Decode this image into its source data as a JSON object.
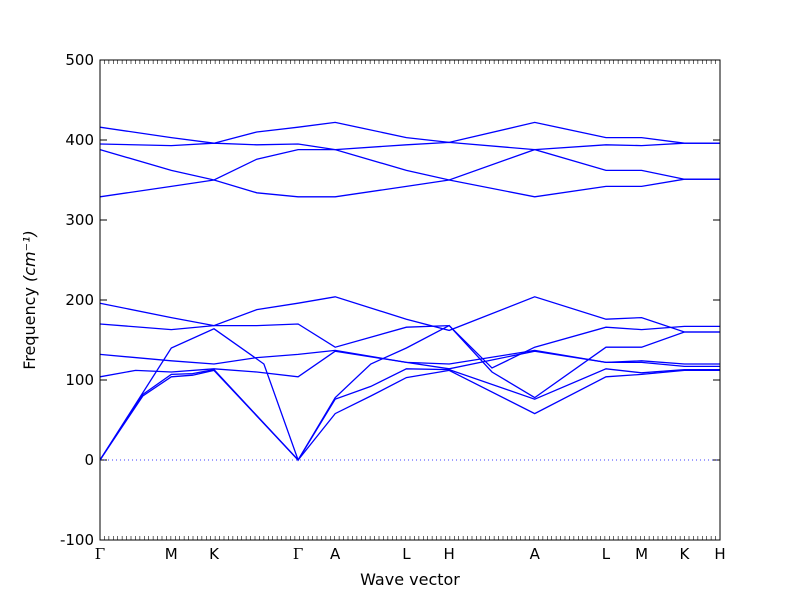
{
  "chart_data": {
    "type": "line",
    "title": "",
    "xlabel": "Wave vector",
    "ylabel": "Frequency",
    "ylabel_unit": "(cm⁻¹)",
    "ylim": [
      -100,
      500
    ],
    "yticks": [
      -100,
      0,
      100,
      200,
      300,
      400,
      500
    ],
    "x_segment_boundaries": [
      0,
      0.9,
      1.5,
      4.2,
      4.7,
      5.7,
      6.3,
      7.5,
      8.5,
      9.0,
      9.6,
      10.0
    ],
    "high_symmetry_points": [
      {
        "label": "Γ",
        "x": 0
      },
      {
        "label": "M",
        "x": 1.0
      },
      {
        "label": "K",
        "x": 1.6
      },
      {
        "label": "Γ",
        "x": 2.78
      },
      {
        "label": "A",
        "x": 3.3
      },
      {
        "label": "L",
        "x": 4.3
      },
      {
        "label": "H",
        "x": 4.9
      },
      {
        "label": "A",
        "x": 6.1
      },
      {
        "label": "L",
        "x": 7.1
      },
      {
        "label": "M",
        "x": 7.6
      },
      {
        "label": "K",
        "x": 8.2
      },
      {
        "label": "H",
        "x": 8.7
      }
    ],
    "zero_line": {
      "y": 0,
      "style": "dotted",
      "color": "#0000ff"
    },
    "line_color": "#0000ff",
    "series": [
      {
        "x": [
          0,
          0.6,
          1.0,
          1.3,
          1.6,
          2.78,
          3.3,
          3.8,
          4.3,
          4.9,
          6.1,
          7.1,
          7.6,
          8.2,
          8.7
        ],
        "y": [
          0,
          80,
          104,
          106,
          112,
          0,
          58,
          80,
          103,
          112,
          58,
          104,
          107,
          112,
          112
        ]
      },
      {
        "x": [
          0,
          0.6,
          1.0,
          1.3,
          1.6,
          2.78,
          3.3,
          3.8,
          4.3,
          4.9,
          6.1,
          7.1,
          7.6,
          8.2,
          8.7
        ],
        "y": [
          0,
          82,
          107,
          108,
          113,
          0,
          76,
          92,
          114,
          113,
          76,
          114,
          109,
          113,
          113
        ]
      },
      {
        "x": [
          0,
          1.0,
          1.6,
          2.3,
          2.78,
          3.3,
          3.8,
          4.3,
          4.9,
          5.5,
          6.1,
          7.1,
          7.6,
          8.2,
          8.7
        ],
        "y": [
          0,
          140,
          164,
          120,
          0,
          78,
          120,
          140,
          168,
          110,
          78,
          141,
          141,
          160,
          160
        ]
      },
      {
        "x": [
          0,
          0.5,
          1.0,
          1.6,
          2.2,
          2.78,
          3.3,
          4.3,
          4.9,
          6.1,
          7.1,
          7.6,
          8.2,
          8.7
        ],
        "y": [
          104,
          112,
          110,
          114,
          110,
          104,
          136,
          122,
          114,
          136,
          122,
          122,
          117,
          117
        ]
      },
      {
        "x": [
          0,
          1.0,
          1.6,
          2.2,
          2.78,
          3.3,
          4.3,
          4.9,
          6.1,
          7.1,
          7.6,
          8.2,
          8.7
        ],
        "y": [
          132,
          124,
          120,
          128,
          132,
          137,
          122,
          120,
          137,
          122,
          124,
          120,
          120
        ]
      },
      {
        "x": [
          0,
          1.0,
          1.6,
          2.2,
          2.78,
          3.3,
          4.3,
          4.9,
          5.5,
          6.1,
          7.1,
          7.6,
          8.2,
          8.7
        ],
        "y": [
          170,
          163,
          168,
          168,
          170,
          141,
          166,
          168,
          115,
          141,
          166,
          163,
          167,
          167
        ]
      },
      {
        "x": [
          0,
          1.0,
          1.6,
          2.2,
          2.78,
          3.3,
          4.3,
          4.9,
          6.1,
          7.1,
          7.6,
          8.2,
          8.7
        ],
        "y": [
          196,
          178,
          168,
          188,
          196,
          204,
          176,
          162,
          204,
          176,
          178,
          160,
          160
        ]
      },
      {
        "x": [
          0,
          1.0,
          1.6,
          2.2,
          2.78,
          3.3,
          4.3,
          4.9,
          6.1,
          7.1,
          7.6,
          8.2,
          8.7
        ],
        "y": [
          329,
          342,
          350,
          334,
          329,
          329,
          342,
          350,
          329,
          342,
          342,
          351,
          351
        ]
      },
      {
        "x": [
          0,
          1.0,
          1.6,
          2.2,
          2.78,
          3.3,
          4.3,
          4.9,
          6.1,
          7.1,
          7.6,
          8.2,
          8.7
        ],
        "y": [
          388,
          362,
          350,
          376,
          388,
          388,
          362,
          350,
          388,
          362,
          362,
          351,
          351
        ]
      },
      {
        "x": [
          0,
          1.0,
          1.6,
          2.2,
          2.78,
          3.3,
          4.3,
          4.9,
          6.1,
          7.1,
          7.6,
          8.2,
          8.7
        ],
        "y": [
          395,
          393,
          396,
          394,
          395,
          388,
          394,
          397,
          388,
          394,
          393,
          396,
          396
        ]
      },
      {
        "x": [
          0,
          1.0,
          1.6,
          2.2,
          2.78,
          3.3,
          4.3,
          4.9,
          6.1,
          7.1,
          7.6,
          8.2,
          8.7
        ],
        "y": [
          416,
          403,
          396,
          410,
          416,
          422,
          403,
          397,
          422,
          403,
          403,
          396,
          396
        ]
      }
    ]
  }
}
